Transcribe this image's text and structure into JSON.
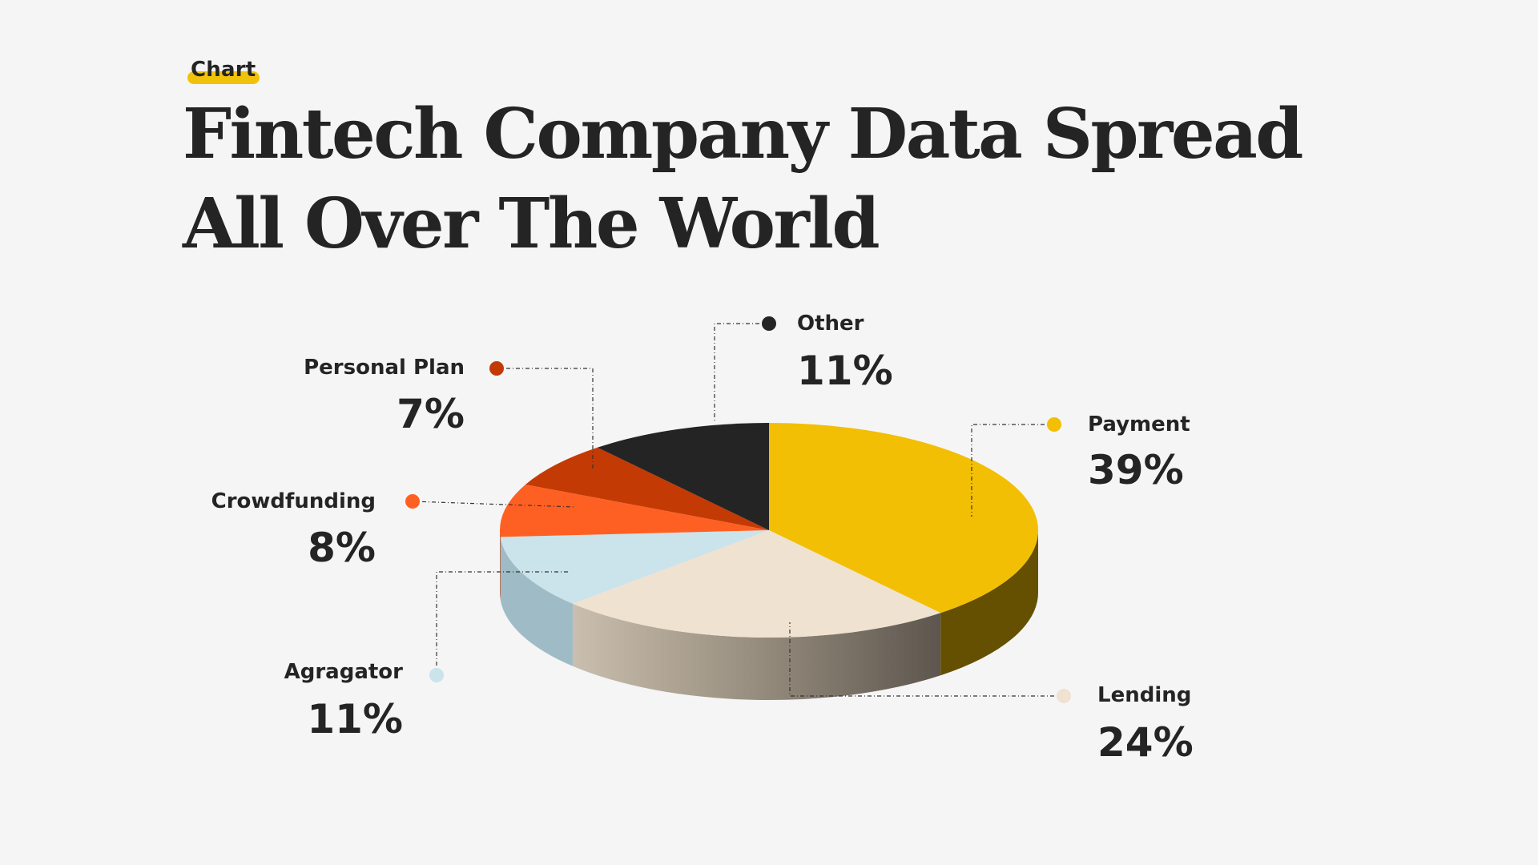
{
  "tag": "Chart",
  "title": [
    "Fintech Company Data Spread",
    "All Over The World"
  ],
  "chart_data": {
    "type": "pie",
    "title": "Fintech Company Data Spread All Over The World",
    "start": "Payment",
    "slices": [
      {
        "name": "Payment",
        "value": 39,
        "label": "39%",
        "color": "#f2bf04",
        "side": "#645000"
      },
      {
        "name": "Lending",
        "value": 24,
        "label": "24%",
        "color": "#f0e2d1",
        "side": "#8d8372"
      },
      {
        "name": "Agragator",
        "value": 11,
        "label": "11%",
        "color": "#cbe3ea",
        "side": "#9fbcc6"
      },
      {
        "name": "Crowdfunding",
        "value": 8,
        "label": "8%",
        "color": "#fe6023",
        "side": "#b0421a"
      },
      {
        "name": "Personal Plan",
        "value": 7,
        "label": "7%",
        "color": "#c43a05",
        "side": "#862804"
      },
      {
        "name": "Other",
        "value": 11,
        "label": "11%",
        "color": "#242424",
        "side": "#111111"
      }
    ]
  }
}
